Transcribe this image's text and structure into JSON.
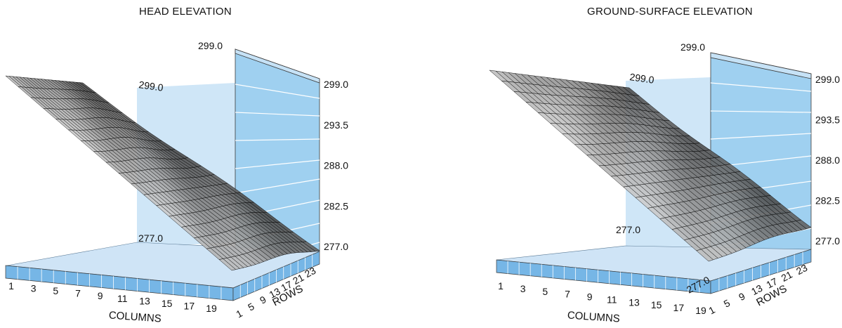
{
  "chart_data": [
    {
      "type": "surface",
      "title": "HEAD ELEVATION",
      "xlabel": "COLUMNS",
      "ylabel": "ROWS",
      "column_ticks": [
        "1",
        "3",
        "5",
        "7",
        "9",
        "11",
        "13",
        "15",
        "17",
        "19"
      ],
      "row_ticks": [
        "1",
        "5",
        "9",
        "13",
        "17",
        "21",
        "23"
      ],
      "z_ticks": [
        "277.0",
        "282.5",
        "288.0",
        "293.5",
        "299.0"
      ],
      "z_back_top": "299.0",
      "z_back_bottom": "277.0",
      "z_corner": "299.0",
      "zlim": [
        277.0,
        299.0
      ],
      "corner_values": {
        "column_1_row_1": 299.0,
        "column_19_row_1": 277.0,
        "column_1_row_23": 299.0,
        "column_19_row_23": 277.0
      }
    },
    {
      "type": "surface",
      "title": "GROUND-SURFACE ELEVATION",
      "xlabel": "COLUMNS",
      "ylabel": "ROWS",
      "column_ticks": [
        "1",
        "3",
        "5",
        "7",
        "9",
        "11",
        "13",
        "15",
        "17",
        "19"
      ],
      "row_ticks": [
        "1",
        "5",
        "9",
        "13",
        "17",
        "21",
        "23"
      ],
      "z_ticks": [
        "277.0",
        "282.5",
        "288.0",
        "293.5",
        "299.0"
      ],
      "z_back_top": "299.0",
      "z_back_bottom": "277.0",
      "z_corner": "299.0",
      "z_floor": "277.0",
      "zlim": [
        277.0,
        299.0
      ],
      "corner_values": {
        "column_1_row_1": 299.0,
        "column_19_row_1": 277.0,
        "column_1_row_23": 299.0,
        "column_19_row_23": 277.0
      }
    }
  ],
  "colors": {
    "wall_light": "#cfe6f7",
    "wall_mid": "#9fd0f0",
    "wall_dark": "#76b6e6",
    "floor": "#cfe4f6",
    "surface_dark": "#1a1a1a",
    "surface_light": "#d8d8d8",
    "mesh": "#000000"
  }
}
